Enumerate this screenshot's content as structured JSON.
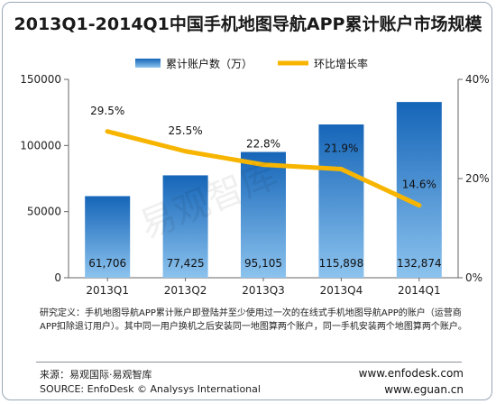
{
  "chart_data": {
    "type": "bar",
    "title": "2013Q1-2014Q1中国手机地图导航APP累计账户市场规模",
    "categories": [
      "2013Q1",
      "2013Q2",
      "2013Q3",
      "2013Q4",
      "2014Q1"
    ],
    "series": [
      {
        "name": "累计账户数（万）",
        "type": "bar",
        "axis": "left",
        "values": [
          61706,
          77425,
          95105,
          115898,
          132874
        ],
        "value_labels": [
          "61,706",
          "77,425",
          "95,105",
          "115,898",
          "132,874"
        ],
        "color": "#2f7fc8"
      },
      {
        "name": "环比增长率",
        "type": "line",
        "axis": "right",
        "values": [
          29.5,
          25.5,
          22.8,
          21.9,
          14.6
        ],
        "value_labels": [
          "29.5%",
          "25.5%",
          "22.8%",
          "21.9%",
          "14.6%"
        ],
        "color": "#f7b500"
      }
    ],
    "y_left": {
      "min": 0,
      "max": 150000,
      "ticks": [
        0,
        50000,
        100000,
        150000
      ],
      "tick_labels": [
        "0",
        "50000",
        "100000",
        "150000"
      ]
    },
    "y_right": {
      "min": 0,
      "max": 40,
      "ticks": [
        0,
        20,
        40
      ],
      "tick_labels": [
        "0%",
        "20%",
        "40%"
      ]
    },
    "grid": false,
    "legend": "top-right"
  },
  "note": "研究定义：手机地图导航APP累计账户即登陆并至少使用过一次的在线式手机地图导航APP的账户（运营商APP扣除退订用户）。其中同一用户换机之后安装同一地图算两个账户，同一手机安装两个地图算两个账户。",
  "footer": {
    "source_cn": "来源：易观国际·易观智库",
    "source_en": "SOURCE: EnfoDesk © Analysys International",
    "url1": "www.enfodesk.com",
    "url2": "www.eguan.cn"
  },
  "watermark": "易观智库"
}
